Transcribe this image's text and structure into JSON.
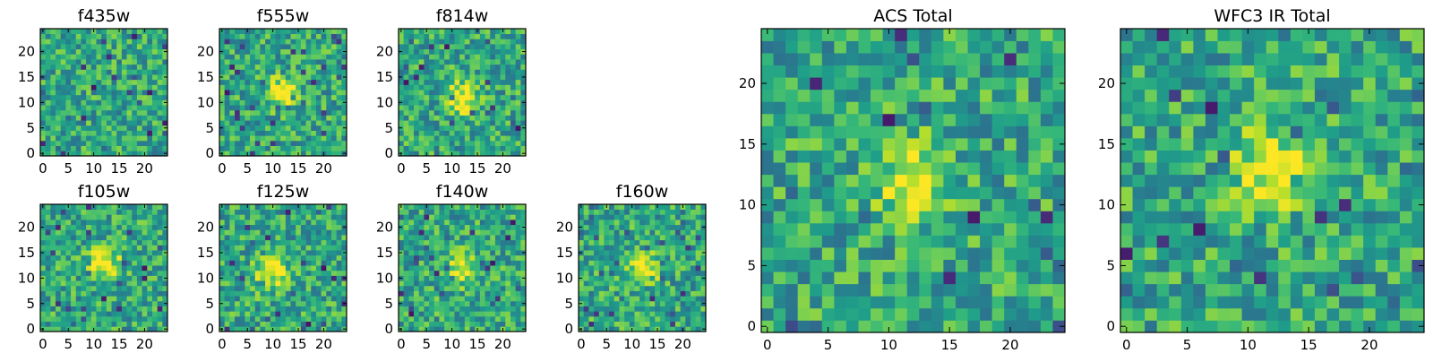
{
  "chart_data": [
    {
      "type": "heatmap",
      "title": "f435w",
      "grid_size": 25,
      "x_ticks": [
        0,
        5,
        10,
        15,
        20
      ],
      "y_ticks": [
        0,
        5,
        10,
        15,
        20
      ],
      "xlim": [
        0,
        25
      ],
      "ylim": [
        0,
        25
      ],
      "colormap": "viridis",
      "peak": null
    },
    {
      "type": "heatmap",
      "title": "f555w",
      "grid_size": 25,
      "x_ticks": [
        0,
        5,
        10,
        15,
        20
      ],
      "y_ticks": [
        0,
        5,
        10,
        15,
        20
      ],
      "xlim": [
        0,
        25
      ],
      "ylim": [
        0,
        25
      ],
      "colormap": "viridis",
      "peak": {
        "x": 12,
        "y": 12
      }
    },
    {
      "type": "heatmap",
      "title": "f814w",
      "grid_size": 25,
      "x_ticks": [
        0,
        5,
        10,
        15,
        20
      ],
      "y_ticks": [
        0,
        5,
        10,
        15,
        20
      ],
      "xlim": [
        0,
        25
      ],
      "ylim": [
        0,
        25
      ],
      "colormap": "viridis",
      "peak": {
        "x": 12,
        "y": 11
      }
    },
    {
      "type": "heatmap",
      "title": "f105w",
      "grid_size": 25,
      "x_ticks": [
        0,
        5,
        10,
        15,
        20
      ],
      "y_ticks": [
        0,
        5,
        10,
        15,
        20
      ],
      "xlim": [
        0,
        25
      ],
      "ylim": [
        0,
        25
      ],
      "colormap": "viridis",
      "peak": {
        "x": 12,
        "y": 13
      }
    },
    {
      "type": "heatmap",
      "title": "f125w",
      "grid_size": 25,
      "x_ticks": [
        0,
        5,
        10,
        15,
        20
      ],
      "y_ticks": [
        0,
        5,
        10,
        15,
        20
      ],
      "xlim": [
        0,
        25
      ],
      "ylim": [
        0,
        25
      ],
      "colormap": "viridis",
      "peak": {
        "x": 10,
        "y": 11
      }
    },
    {
      "type": "heatmap",
      "title": "f140w",
      "grid_size": 25,
      "x_ticks": [
        0,
        5,
        10,
        15,
        20
      ],
      "y_ticks": [
        0,
        5,
        10,
        15,
        20
      ],
      "xlim": [
        0,
        25
      ],
      "ylim": [
        0,
        25
      ],
      "colormap": "viridis",
      "peak": {
        "x": 12,
        "y": 12
      }
    },
    {
      "type": "heatmap",
      "title": "f160w",
      "grid_size": 25,
      "x_ticks": [
        0,
        5,
        10,
        15,
        20
      ],
      "y_ticks": [
        0,
        5,
        10,
        15,
        20
      ],
      "xlim": [
        0,
        25
      ],
      "ylim": [
        0,
        25
      ],
      "colormap": "viridis",
      "peak": {
        "x": 12,
        "y": 12
      }
    },
    {
      "type": "heatmap",
      "title": "ACS Total",
      "grid_size": 25,
      "x_ticks": [
        0,
        5,
        10,
        15,
        20
      ],
      "y_ticks": [
        0,
        5,
        10,
        15,
        20
      ],
      "xlim": [
        0,
        25
      ],
      "ylim": [
        0,
        25
      ],
      "colormap": "viridis",
      "peak": {
        "x": 12,
        "y": 12
      }
    },
    {
      "type": "heatmap",
      "title": "WFC3 IR Total",
      "grid_size": 25,
      "x_ticks": [
        0,
        5,
        10,
        15,
        20
      ],
      "y_ticks": [
        0,
        5,
        10,
        15,
        20
      ],
      "xlim": [
        0,
        25
      ],
      "ylim": [
        0,
        25
      ],
      "colormap": "viridis",
      "peak": {
        "x": 12,
        "y": 13
      }
    }
  ]
}
